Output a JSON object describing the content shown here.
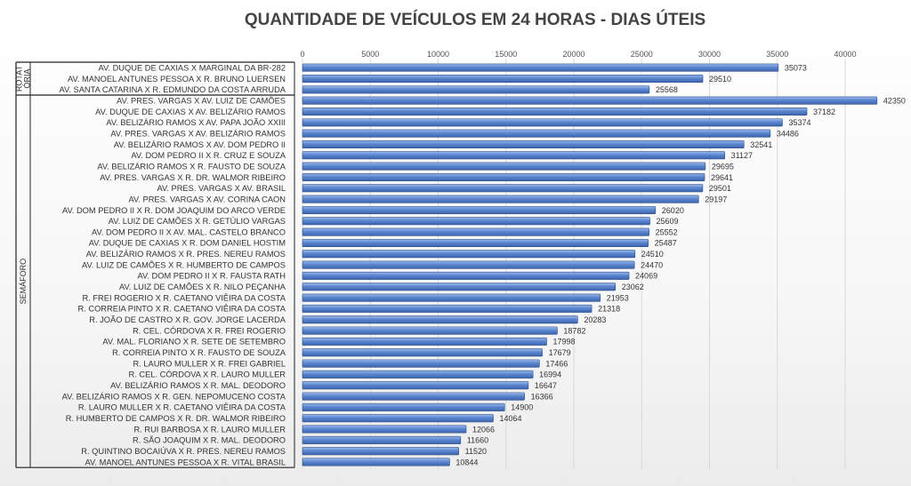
{
  "chart_data": {
    "type": "bar",
    "orientation": "horizontal",
    "title": "QUANTIDADE DE VEÍCULOS EM 24 HORAS - DIAS ÚTEIS",
    "xlim": [
      0,
      45000
    ],
    "xticks": [
      0,
      5000,
      10000,
      15000,
      20000,
      25000,
      30000,
      35000,
      40000
    ],
    "grid": true,
    "groups": [
      {
        "name": "ROTATÓRIA",
        "label_lines": [
          "ROTAT",
          "ÓRIA"
        ]
      },
      {
        "name": "SEMÁFORO",
        "label_lines": [
          "SEMÁFORO"
        ]
      }
    ],
    "categories": [
      "AV. DUQUE DE CAXIAS X MARGINAL DA BR-282",
      "AV. MANOEL ANTUNES PESSOA X R. BRUNO LUERSEN",
      "AV. SANTA CATARINA X R. EDMUNDO DA COSTA ARRUDA",
      "AV. PRES. VARGAS X AV. LUIZ DE CAMÕES",
      "AV. DUQUE DE CAXIAS X AV. BELIZÁRIO RAMOS",
      "AV. BELIZÁRIO RAMOS X AV. PAPA JOÃO XXIII",
      "AV. PRES. VARGAS X AV. BELIZÁRIO RAMOS",
      "AV. BELIZÁRIO RAMOS X AV. DOM PEDRO II",
      "AV. DOM PEDRO II X R. CRUZ E SOUZA",
      "AV. BELIZÁRIO RAMOS X R. FAUSTO DE SOUZA",
      "AV. PRES. VARGAS X R. DR. WALMOR RIBEIRO",
      "AV. PRES. VARGAS X AV. BRASIL",
      "AV. PRES. VARGAS X AV. CORINA CAON",
      "AV. DOM PEDRO II X R. DOM JOAQUIM DO ARCO VERDE",
      "AV. LUIZ DE CAMÕES X R. GETÚLIO VARGAS",
      "AV. DOM PEDRO II X AV. MAL. CASTELO BRANCO",
      "AV. DUQUE DE CAXIAS X R. DOM DANIEL HOSTIM",
      "AV. BELIZÁRIO RAMOS X R. PRES. NEREU RAMOS",
      "AV. LUIZ DE CAMÕES X R. HUMBERTO DE CAMPOS",
      "AV. DOM PEDRO II X R. FAUSTA RATH",
      "AV. LUIZ DE CAMÕES X R. NILO PEÇANHA",
      "R. FREI ROGERIO X R. CAETANO VIÊIRA DA COSTA",
      "R. CORREIA PINTO X R. CAETANO VIÊIRA DA COSTA",
      "R. JOÃO DE CASTRO X R. GOV. JORGE LACERDA",
      "R. CEL. CÓRDOVA X R. FREI ROGERIO",
      "AV. MAL. FLORIANO X R. SETE DE SETEMBRO",
      "R. CORREIA PINTO X R. FAUSTO DE SOUZA",
      "R. LAURO MULLER X R. FREI GABRIEL",
      "R. CEL. CÓRDOVA X R. LAURO MULLER",
      "AV. BELIZÁRIO RAMOS X R. MAL. DEODORO",
      "AV. BELIZÁRIO RAMOS X R. GEN. NEPOMUCENO COSTA",
      "R. LAURO MULLER X R. CAETANO VIÊIRA DA COSTA",
      "R. HUMBERTO DE CAMPOS X R. DR. WALMOR RIBEIRO",
      "R. RUI BARBOSA X R. LAURO MULLER",
      "R. SÃO JOAQUIM X R. MAL. DEODORO",
      "R. QUINTINO BOCAIÚVA X R. PRES. NEREU RAMOS",
      "AV. MANOEL ANTUNES PESSOA X R. VITAL BRASIL"
    ],
    "values": [
      35073,
      29510,
      25568,
      42350,
      37182,
      35374,
      34486,
      32541,
      31127,
      29695,
      29641,
      29501,
      29197,
      26020,
      25609,
      25552,
      25487,
      24510,
      24470,
      24069,
      23062,
      21953,
      21318,
      20283,
      18782,
      17998,
      17679,
      17466,
      16994,
      16647,
      16366,
      14900,
      14064,
      12066,
      11660,
      11520,
      10844
    ],
    "group_of_category": [
      0,
      0,
      0,
      1,
      1,
      1,
      1,
      1,
      1,
      1,
      1,
      1,
      1,
      1,
      1,
      1,
      1,
      1,
      1,
      1,
      1,
      1,
      1,
      1,
      1,
      1,
      1,
      1,
      1,
      1,
      1,
      1,
      1,
      1,
      1,
      1,
      1
    ],
    "bar_color": "#4f7bc7",
    "bar_highlight": "#8fb1e6",
    "bar_edge": "#2f4f8a"
  }
}
